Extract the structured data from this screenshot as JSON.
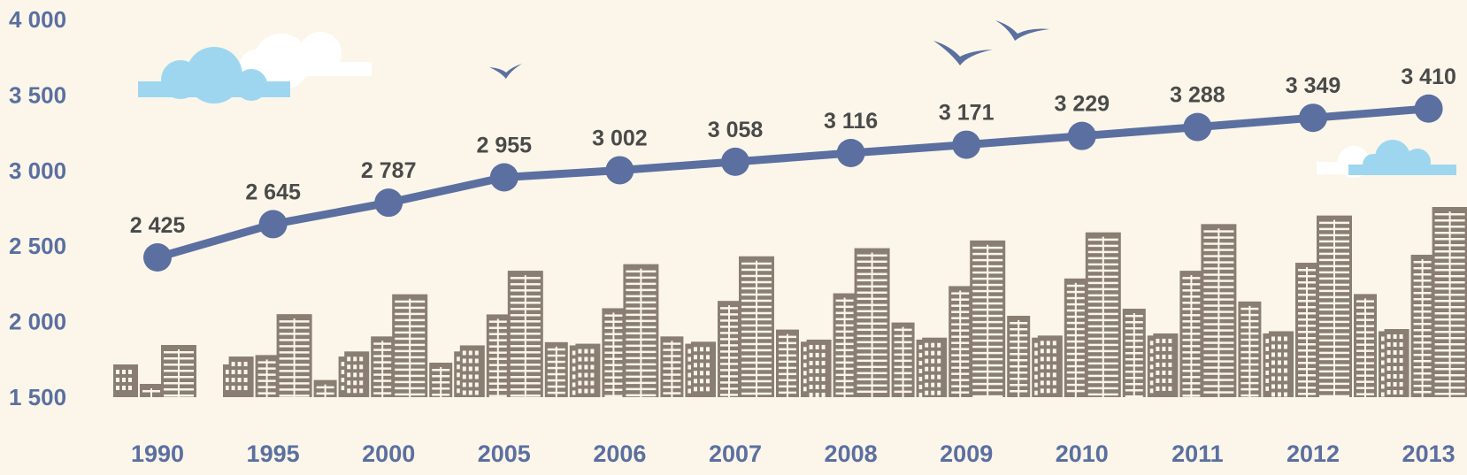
{
  "colors": {
    "background": "#fbf6e9",
    "line": "#5b6fa0",
    "buildings": "#8a7e72",
    "cloud_blue": "#9ed6f0",
    "cloud_white": "#ffffff",
    "axis_text": "#5b6fa0",
    "label_text": "#4a4a4a"
  },
  "icons": [
    "cloud-icon",
    "bird-icon",
    "city-skyline-illustration"
  ],
  "chart_data": {
    "type": "line",
    "title": "",
    "xlabel": "",
    "ylabel": "",
    "ylim": [
      1500,
      4000
    ],
    "yticks": [
      1500,
      2000,
      2500,
      3000,
      3500,
      4000
    ],
    "ytick_labels": [
      "1 500",
      "2 000",
      "2 500",
      "3 000",
      "3 500",
      "4 000"
    ],
    "grid": false,
    "legend": "none",
    "categories": [
      "1990",
      "1995",
      "2000",
      "2005",
      "2006",
      "2007",
      "2008",
      "2009",
      "2010",
      "2011",
      "2012",
      "2013"
    ],
    "values": [
      2425,
      2645,
      2787,
      2955,
      3002,
      3058,
      3116,
      3171,
      3229,
      3288,
      3349,
      3410
    ],
    "data_labels": [
      "2 425",
      "2 645",
      "2 787",
      "2 955",
      "3 002",
      "3 058",
      "3 116",
      "3 171",
      "3 229",
      "3 288",
      "3 349",
      "3 410"
    ]
  }
}
